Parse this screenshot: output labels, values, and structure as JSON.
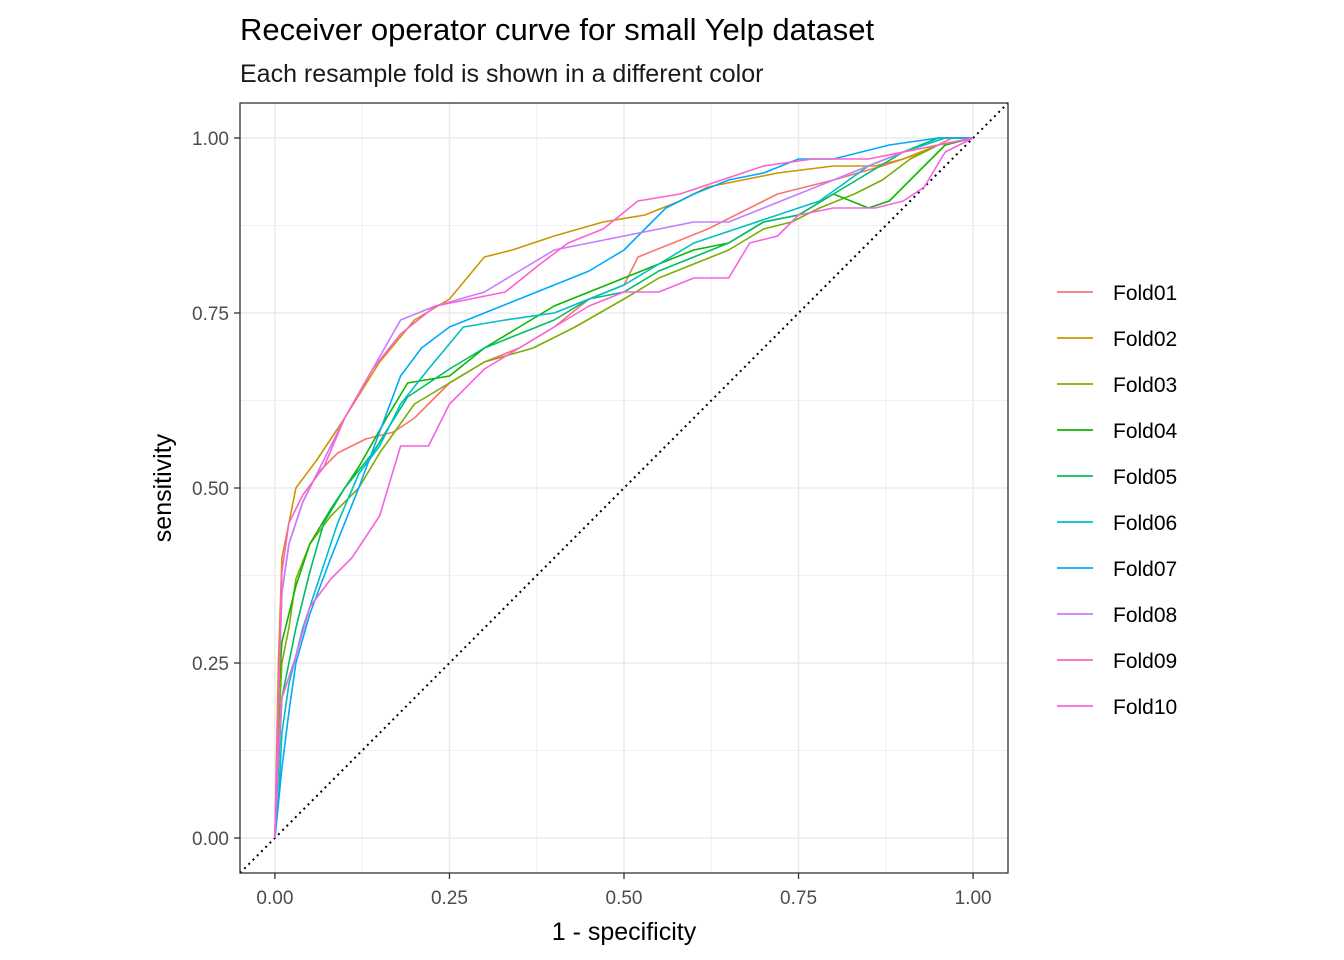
{
  "chart_data": {
    "type": "line",
    "title": "Receiver operator curve for small Yelp dataset",
    "subtitle": "Each resample fold is shown in a different color",
    "xlabel": "1 - specificity",
    "ylabel": "sensitivity",
    "xlim": [
      -0.05,
      1.05
    ],
    "ylim": [
      -0.05,
      1.05
    ],
    "x_ticks": [
      "0.00",
      "0.25",
      "0.50",
      "0.75",
      "1.00"
    ],
    "y_ticks": [
      "0.00",
      "0.25",
      "0.50",
      "0.75",
      "1.00"
    ],
    "grid": true,
    "legend_position": "right",
    "reference_line": {
      "style": "dotted",
      "from": [
        0,
        0
      ],
      "to": [
        1,
        1
      ]
    },
    "series": [
      {
        "name": "Fold01",
        "color": "#F8766D",
        "points": [
          [
            0,
            0
          ],
          [
            0.005,
            0.2
          ],
          [
            0.01,
            0.35
          ],
          [
            0.02,
            0.42
          ],
          [
            0.04,
            0.48
          ],
          [
            0.06,
            0.52
          ],
          [
            0.09,
            0.55
          ],
          [
            0.13,
            0.57
          ],
          [
            0.17,
            0.58
          ],
          [
            0.2,
            0.6
          ],
          [
            0.25,
            0.65
          ],
          [
            0.3,
            0.68
          ],
          [
            0.35,
            0.7
          ],
          [
            0.4,
            0.73
          ],
          [
            0.45,
            0.77
          ],
          [
            0.5,
            0.79
          ],
          [
            0.52,
            0.83
          ],
          [
            0.57,
            0.85
          ],
          [
            0.62,
            0.87
          ],
          [
            0.68,
            0.9
          ],
          [
            0.72,
            0.92
          ],
          [
            0.8,
            0.94
          ],
          [
            0.87,
            0.96
          ],
          [
            0.93,
            0.98
          ],
          [
            0.97,
            1.0
          ],
          [
            1.0,
            1.0
          ]
        ]
      },
      {
        "name": "Fold02",
        "color": "#CD9600",
        "points": [
          [
            0,
            0
          ],
          [
            0.005,
            0.25
          ],
          [
            0.01,
            0.4
          ],
          [
            0.03,
            0.5
          ],
          [
            0.06,
            0.54
          ],
          [
            0.1,
            0.6
          ],
          [
            0.15,
            0.68
          ],
          [
            0.2,
            0.74
          ],
          [
            0.25,
            0.77
          ],
          [
            0.3,
            0.83
          ],
          [
            0.34,
            0.84
          ],
          [
            0.4,
            0.86
          ],
          [
            0.47,
            0.88
          ],
          [
            0.53,
            0.89
          ],
          [
            0.58,
            0.91
          ],
          [
            0.62,
            0.93
          ],
          [
            0.67,
            0.94
          ],
          [
            0.72,
            0.95
          ],
          [
            0.8,
            0.96
          ],
          [
            0.86,
            0.96
          ],
          [
            0.9,
            0.97
          ],
          [
            0.95,
            0.99
          ],
          [
            1.0,
            1.0
          ]
        ]
      },
      {
        "name": "Fold03",
        "color": "#7CAE00",
        "points": [
          [
            0,
            0
          ],
          [
            0.005,
            0.15
          ],
          [
            0.01,
            0.25
          ],
          [
            0.02,
            0.3
          ],
          [
            0.03,
            0.37
          ],
          [
            0.05,
            0.42
          ],
          [
            0.08,
            0.46
          ],
          [
            0.12,
            0.5
          ],
          [
            0.15,
            0.55
          ],
          [
            0.2,
            0.62
          ],
          [
            0.25,
            0.65
          ],
          [
            0.3,
            0.68
          ],
          [
            0.37,
            0.7
          ],
          [
            0.43,
            0.73
          ],
          [
            0.5,
            0.77
          ],
          [
            0.55,
            0.8
          ],
          [
            0.6,
            0.82
          ],
          [
            0.65,
            0.84
          ],
          [
            0.7,
            0.87
          ],
          [
            0.74,
            0.88
          ],
          [
            0.78,
            0.9
          ],
          [
            0.83,
            0.92
          ],
          [
            0.87,
            0.94
          ],
          [
            0.91,
            0.97
          ],
          [
            0.95,
            0.99
          ],
          [
            1.0,
            1.0
          ]
        ]
      },
      {
        "name": "Fold04",
        "color": "#0CB702",
        "points": [
          [
            0,
            0
          ],
          [
            0.005,
            0.2
          ],
          [
            0.01,
            0.28
          ],
          [
            0.03,
            0.36
          ],
          [
            0.05,
            0.42
          ],
          [
            0.08,
            0.47
          ],
          [
            0.12,
            0.53
          ],
          [
            0.16,
            0.6
          ],
          [
            0.19,
            0.65
          ],
          [
            0.25,
            0.66
          ],
          [
            0.3,
            0.7
          ],
          [
            0.35,
            0.73
          ],
          [
            0.4,
            0.76
          ],
          [
            0.45,
            0.78
          ],
          [
            0.5,
            0.8
          ],
          [
            0.55,
            0.82
          ],
          [
            0.6,
            0.84
          ],
          [
            0.65,
            0.85
          ],
          [
            0.7,
            0.88
          ],
          [
            0.75,
            0.89
          ],
          [
            0.8,
            0.92
          ],
          [
            0.85,
            0.9
          ],
          [
            0.88,
            0.91
          ],
          [
            0.92,
            0.95
          ],
          [
            0.96,
            0.99
          ],
          [
            1.0,
            1.0
          ]
        ]
      },
      {
        "name": "Fold05",
        "color": "#00BE67",
        "points": [
          [
            0,
            0
          ],
          [
            0.005,
            0.1
          ],
          [
            0.01,
            0.2
          ],
          [
            0.03,
            0.3
          ],
          [
            0.05,
            0.38
          ],
          [
            0.07,
            0.45
          ],
          [
            0.1,
            0.5
          ],
          [
            0.14,
            0.55
          ],
          [
            0.19,
            0.63
          ],
          [
            0.25,
            0.67
          ],
          [
            0.3,
            0.7
          ],
          [
            0.35,
            0.72
          ],
          [
            0.4,
            0.74
          ],
          [
            0.45,
            0.77
          ],
          [
            0.5,
            0.78
          ],
          [
            0.55,
            0.81
          ],
          [
            0.6,
            0.83
          ],
          [
            0.65,
            0.85
          ],
          [
            0.7,
            0.88
          ],
          [
            0.75,
            0.89
          ],
          [
            0.8,
            0.92
          ],
          [
            0.85,
            0.95
          ],
          [
            0.9,
            0.98
          ],
          [
            0.95,
            1.0
          ],
          [
            1.0,
            1.0
          ]
        ]
      },
      {
        "name": "Fold06",
        "color": "#00BFC4",
        "points": [
          [
            0,
            0
          ],
          [
            0.005,
            0.05
          ],
          [
            0.01,
            0.15
          ],
          [
            0.02,
            0.22
          ],
          [
            0.04,
            0.3
          ],
          [
            0.06,
            0.36
          ],
          [
            0.09,
            0.45
          ],
          [
            0.12,
            0.52
          ],
          [
            0.15,
            0.56
          ],
          [
            0.18,
            0.62
          ],
          [
            0.22,
            0.67
          ],
          [
            0.27,
            0.73
          ],
          [
            0.33,
            0.74
          ],
          [
            0.4,
            0.75
          ],
          [
            0.45,
            0.77
          ],
          [
            0.5,
            0.79
          ],
          [
            0.55,
            0.82
          ],
          [
            0.6,
            0.85
          ],
          [
            0.66,
            0.87
          ],
          [
            0.72,
            0.89
          ],
          [
            0.78,
            0.91
          ],
          [
            0.85,
            0.96
          ],
          [
            0.9,
            0.98
          ],
          [
            0.96,
            1.0
          ],
          [
            1.0,
            1.0
          ]
        ]
      },
      {
        "name": "Fold07",
        "color": "#00A9FF",
        "points": [
          [
            0,
            0
          ],
          [
            0.005,
            0.05
          ],
          [
            0.01,
            0.1
          ],
          [
            0.02,
            0.18
          ],
          [
            0.03,
            0.25
          ],
          [
            0.05,
            0.32
          ],
          [
            0.08,
            0.4
          ],
          [
            0.12,
            0.5
          ],
          [
            0.15,
            0.58
          ],
          [
            0.18,
            0.66
          ],
          [
            0.21,
            0.7
          ],
          [
            0.25,
            0.73
          ],
          [
            0.3,
            0.75
          ],
          [
            0.35,
            0.77
          ],
          [
            0.4,
            0.79
          ],
          [
            0.45,
            0.81
          ],
          [
            0.5,
            0.84
          ],
          [
            0.53,
            0.87
          ],
          [
            0.56,
            0.9
          ],
          [
            0.6,
            0.92
          ],
          [
            0.65,
            0.94
          ],
          [
            0.7,
            0.95
          ],
          [
            0.75,
            0.97
          ],
          [
            0.8,
            0.97
          ],
          [
            0.88,
            0.99
          ],
          [
            0.95,
            1.0
          ],
          [
            1.0,
            1.0
          ]
        ]
      },
      {
        "name": "Fold08",
        "color": "#C77CFF",
        "points": [
          [
            0,
            0
          ],
          [
            0.005,
            0.2
          ],
          [
            0.01,
            0.35
          ],
          [
            0.02,
            0.42
          ],
          [
            0.04,
            0.48
          ],
          [
            0.07,
            0.54
          ],
          [
            0.1,
            0.6
          ],
          [
            0.14,
            0.67
          ],
          [
            0.18,
            0.74
          ],
          [
            0.23,
            0.76
          ],
          [
            0.3,
            0.78
          ],
          [
            0.35,
            0.81
          ],
          [
            0.4,
            0.84
          ],
          [
            0.45,
            0.85
          ],
          [
            0.5,
            0.86
          ],
          [
            0.55,
            0.87
          ],
          [
            0.6,
            0.88
          ],
          [
            0.65,
            0.88
          ],
          [
            0.7,
            0.9
          ],
          [
            0.75,
            0.92
          ],
          [
            0.8,
            0.94
          ],
          [
            0.85,
            0.96
          ],
          [
            0.9,
            0.98
          ],
          [
            0.95,
            0.99
          ],
          [
            1.0,
            1.0
          ]
        ]
      },
      {
        "name": "Fold09",
        "color": "#FF61CC",
        "points": [
          [
            0,
            0
          ],
          [
            0.005,
            0.2
          ],
          [
            0.01,
            0.38
          ],
          [
            0.02,
            0.45
          ],
          [
            0.04,
            0.49
          ],
          [
            0.07,
            0.53
          ],
          [
            0.1,
            0.6
          ],
          [
            0.14,
            0.67
          ],
          [
            0.18,
            0.72
          ],
          [
            0.23,
            0.76
          ],
          [
            0.28,
            0.77
          ],
          [
            0.33,
            0.78
          ],
          [
            0.38,
            0.82
          ],
          [
            0.42,
            0.85
          ],
          [
            0.47,
            0.87
          ],
          [
            0.52,
            0.91
          ],
          [
            0.58,
            0.92
          ],
          [
            0.64,
            0.94
          ],
          [
            0.7,
            0.96
          ],
          [
            0.77,
            0.97
          ],
          [
            0.85,
            0.97
          ],
          [
            0.9,
            0.98
          ],
          [
            0.95,
            0.99
          ],
          [
            1.0,
            1.0
          ]
        ]
      },
      {
        "name": "Fold10",
        "color": "#F564E3",
        "points": [
          [
            0,
            0
          ],
          [
            0.005,
            0.12
          ],
          [
            0.01,
            0.2
          ],
          [
            0.03,
            0.26
          ],
          [
            0.05,
            0.33
          ],
          [
            0.08,
            0.37
          ],
          [
            0.11,
            0.4
          ],
          [
            0.15,
            0.46
          ],
          [
            0.18,
            0.56
          ],
          [
            0.22,
            0.56
          ],
          [
            0.25,
            0.62
          ],
          [
            0.3,
            0.67
          ],
          [
            0.35,
            0.7
          ],
          [
            0.4,
            0.73
          ],
          [
            0.45,
            0.76
          ],
          [
            0.5,
            0.78
          ],
          [
            0.55,
            0.78
          ],
          [
            0.6,
            0.8
          ],
          [
            0.65,
            0.8
          ],
          [
            0.68,
            0.85
          ],
          [
            0.72,
            0.86
          ],
          [
            0.75,
            0.89
          ],
          [
            0.8,
            0.9
          ],
          [
            0.86,
            0.9
          ],
          [
            0.9,
            0.91
          ],
          [
            0.93,
            0.93
          ],
          [
            0.96,
            0.98
          ],
          [
            1.0,
            1.0
          ]
        ]
      }
    ]
  }
}
